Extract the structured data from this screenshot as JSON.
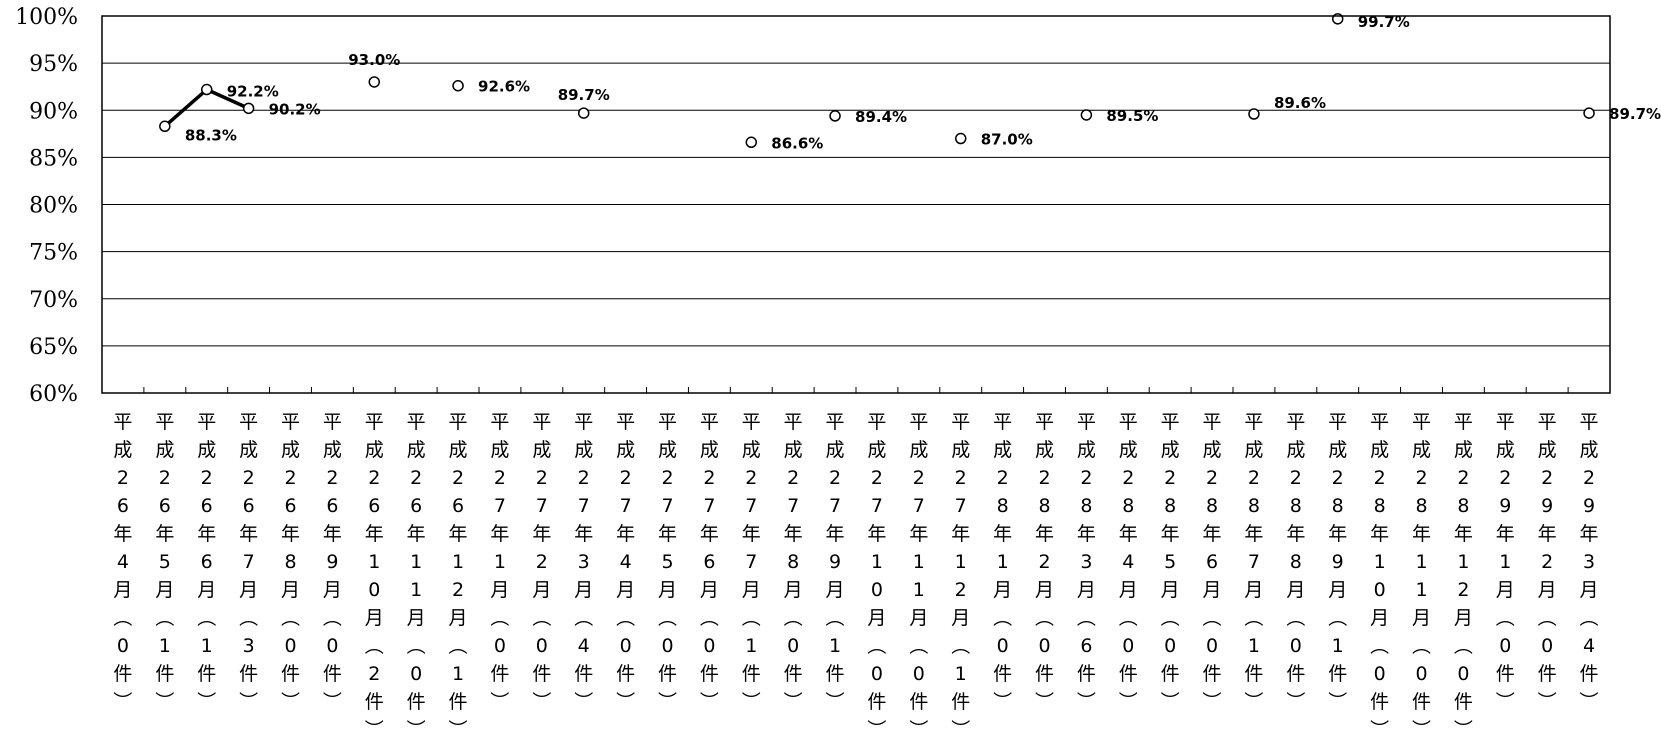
{
  "chart_data": {
    "type": "scatter",
    "title": "",
    "xlabel": "",
    "ylabel": "",
    "ylim": [
      60,
      100
    ],
    "y_ticks": [
      "60%",
      "65%",
      "70%",
      "75%",
      "80%",
      "85%",
      "90%",
      "95%",
      "100%"
    ],
    "grid": true,
    "categories": [
      "平成26年4月（0件）",
      "平成26年5月（1件）",
      "平成26年6月（1件）",
      "平成26年7月（3件）",
      "平成26年8月（0件）",
      "平成26年9月（0件）",
      "平成26年10月（2件）",
      "平成26年11月（0件）",
      "平成26年12月（1件）",
      "平成27年1月（0件）",
      "平成27年2月（0件）",
      "平成27年3月（4件）",
      "平成27年4月（0件）",
      "平成27年5月（0件）",
      "平成27年6月（0件）",
      "平成27年7月（1件）",
      "平成27年8月（0件）",
      "平成27年9月（1件）",
      "平成27年10月（0件）",
      "平成27年11月（0件）",
      "平成27年12月（1件）",
      "平成28年1月（0件）",
      "平成28年2月（0件）",
      "平成28年3月（6件）",
      "平成28年4月（0件）",
      "平成28年5月（0件）",
      "平成28年6月（0件）",
      "平成28年7月（1件）",
      "平成28年8月（0件）",
      "平成28年9月（1件）",
      "平成28年10月（0件）",
      "平成28年11月（0件）",
      "平成28年12月（0件）",
      "平成29年1月（0件）",
      "平成29年2月（0件）",
      "平成29年3月（4件）"
    ],
    "series": [
      {
        "values": [
          null,
          88.3,
          92.2,
          90.2,
          null,
          null,
          93.0,
          null,
          92.6,
          null,
          null,
          89.7,
          null,
          null,
          null,
          86.6,
          null,
          89.4,
          null,
          null,
          87.0,
          null,
          null,
          89.5,
          null,
          null,
          null,
          89.6,
          null,
          99.7,
          null,
          null,
          null,
          null,
          null,
          89.7
        ],
        "data_labels": [
          null,
          "88.3%",
          "92.2%",
          "90.2%",
          null,
          null,
          "93.0%",
          null,
          "92.6%",
          null,
          null,
          "89.7%",
          null,
          null,
          null,
          "86.6%",
          null,
          "89.4%",
          null,
          null,
          "87.0%",
          null,
          null,
          "89.5%",
          null,
          null,
          null,
          "89.6%",
          null,
          "99.7%",
          null,
          null,
          null,
          null,
          null,
          "89.7%"
        ],
        "connected_segment": [
          1,
          3
        ]
      }
    ]
  }
}
